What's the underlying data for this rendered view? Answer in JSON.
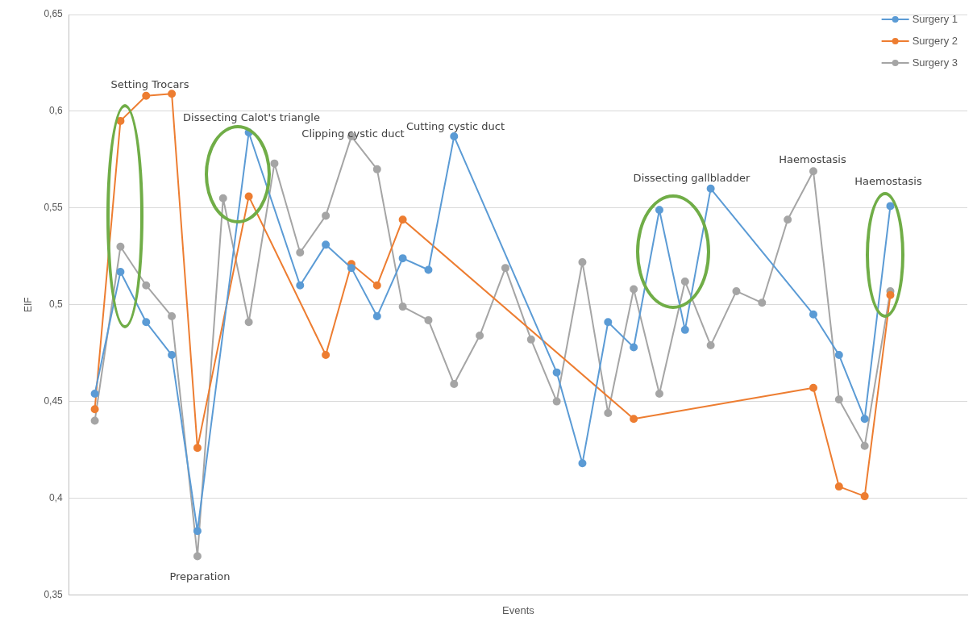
{
  "chart_data": {
    "type": "line",
    "xlabel": "Events",
    "ylabel": "EIF",
    "categories": [
      null,
      null,
      null,
      null,
      null,
      null,
      null,
      null,
      null,
      null,
      null,
      null,
      null,
      null,
      null,
      null,
      null,
      null,
      null,
      null,
      null,
      null,
      null,
      null,
      null,
      null,
      null,
      null,
      null,
      null,
      null,
      null
    ],
    "series": [
      {
        "name": "Surgery 1",
        "color": "#5b9bd5",
        "values": [
          0.454,
          0.517,
          0.491,
          0.474,
          0.383,
          null,
          0.589,
          null,
          0.51,
          0.531,
          0.519,
          0.494,
          0.524,
          0.518,
          0.587,
          null,
          null,
          null,
          0.465,
          0.418,
          0.491,
          0.478,
          0.549,
          0.487,
          0.56,
          null,
          null,
          null,
          0.495,
          0.474,
          0.441,
          0.551
        ]
      },
      {
        "name": "Surgery 2",
        "color": "#ed7d31",
        "values": [
          0.446,
          0.595,
          0.608,
          0.609,
          0.426,
          null,
          0.556,
          null,
          null,
          0.474,
          0.521,
          0.51,
          0.544,
          null,
          null,
          null,
          null,
          null,
          null,
          null,
          null,
          0.441,
          null,
          null,
          null,
          null,
          null,
          null,
          0.457,
          0.406,
          0.401,
          0.505
        ]
      },
      {
        "name": "Surgery 3",
        "color": "#a5a5a5",
        "values": [
          0.44,
          0.53,
          0.51,
          0.494,
          0.37,
          0.555,
          0.491,
          0.573,
          0.527,
          0.546,
          0.587,
          0.57,
          0.499,
          0.492,
          0.459,
          0.484,
          0.519,
          0.482,
          0.45,
          0.522,
          0.444,
          0.508,
          0.454,
          0.512,
          0.479,
          0.507,
          0.501,
          0.544,
          0.569,
          0.451,
          0.427,
          0.507
        ]
      }
    ],
    "ylim": [
      0.35,
      0.65
    ],
    "yticks": [
      {
        "value": 0.35,
        "label": "0,35"
      },
      {
        "value": 0.4,
        "label": "0,4"
      },
      {
        "value": 0.45,
        "label": "0,45"
      },
      {
        "value": 0.5,
        "label": "0,5"
      },
      {
        "value": 0.55,
        "label": "0,55"
      },
      {
        "value": 0.6,
        "label": "0,6"
      },
      {
        "value": 0.65,
        "label": "0,65"
      }
    ],
    "grid": "y",
    "legend": "top right",
    "marker": "circle",
    "line_style": "solid",
    "annotations": [
      "Setting Trocars",
      "Dissecting Calot's triangle",
      "Clipping cystic duct",
      "Cutting cystic duct",
      "Preparation",
      "Dissecting gallbladder",
      "Haemostasis",
      "Haemostasis"
    ]
  }
}
